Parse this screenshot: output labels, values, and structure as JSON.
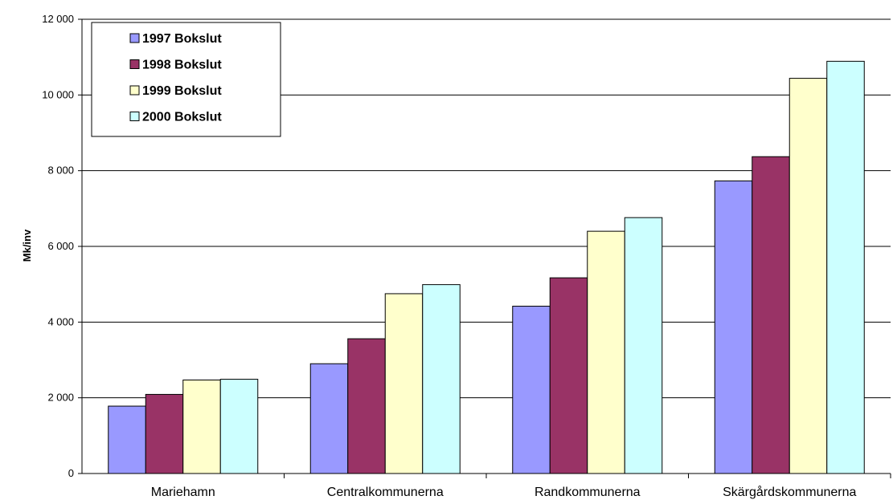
{
  "chart_data": {
    "type": "bar",
    "ylabel": "Mk/inv",
    "ylim": [
      0,
      12000
    ],
    "ytick_step": 2000,
    "yticks": [
      "0",
      "2 000",
      "4 000",
      "6 000",
      "8 000",
      "10 000",
      "12 000"
    ],
    "categories": [
      "Mariehamn",
      "Centralkommunerna",
      "Randkommunerna",
      "Skärgårdskommunerna"
    ],
    "grid": true,
    "legend_position": "top-left",
    "series": [
      {
        "name": "1997 Bokslut",
        "color": "#9999ff",
        "values": [
          1780,
          2900,
          4420,
          7730
        ]
      },
      {
        "name": "1998 Bokslut",
        "color": "#993366",
        "values": [
          2090,
          3560,
          5170,
          8370
        ]
      },
      {
        "name": "1999 Bokslut",
        "color": "#ffffcc",
        "values": [
          2470,
          4750,
          6400,
          10440
        ]
      },
      {
        "name": "2000 Bokslut",
        "color": "#ccffff",
        "values": [
          2490,
          4990,
          6760,
          10890
        ]
      }
    ]
  }
}
